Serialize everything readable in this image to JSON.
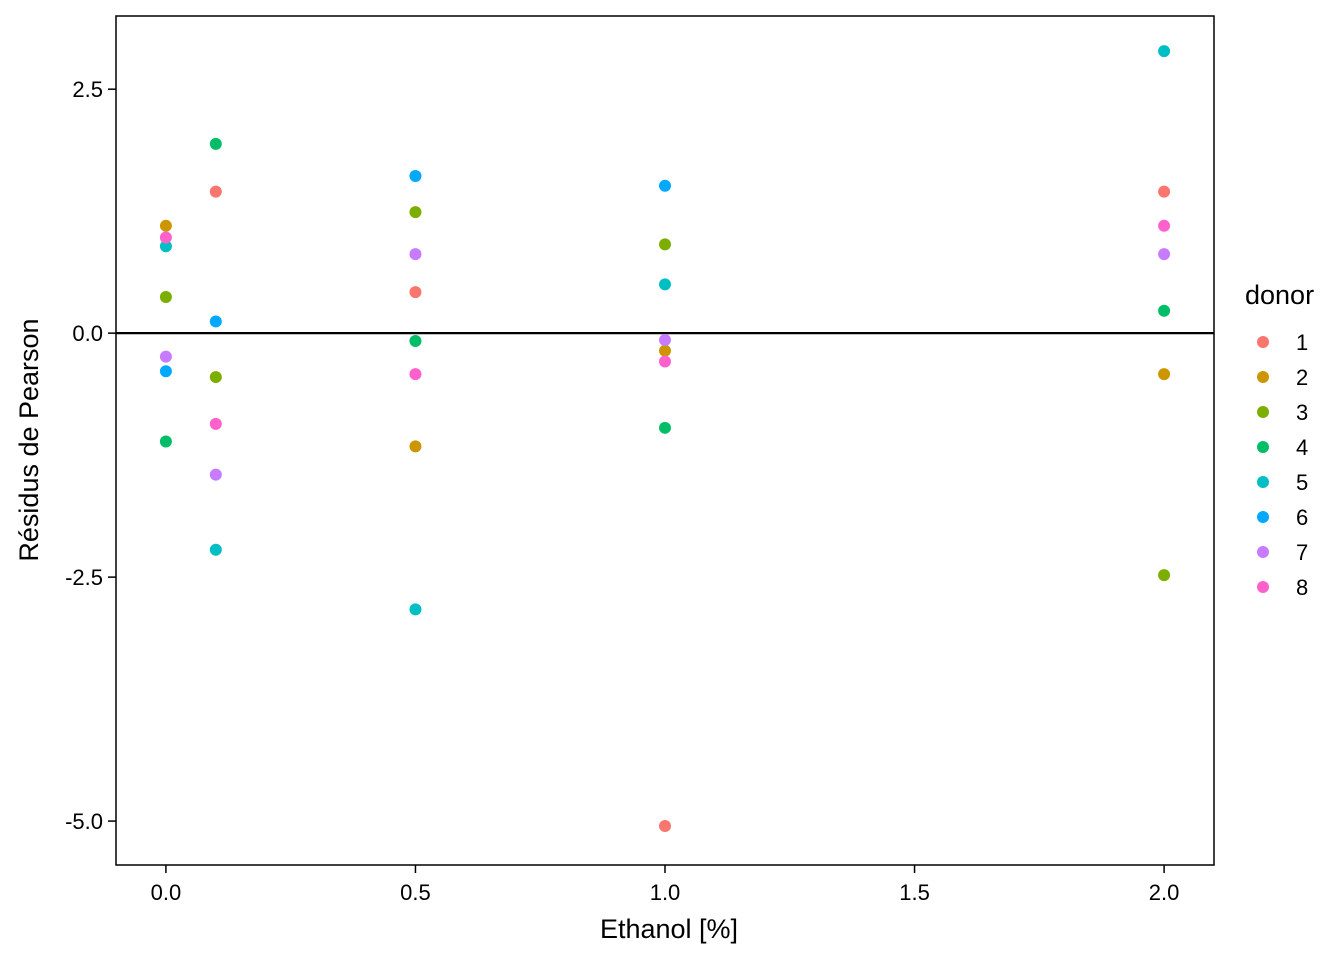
{
  "chart_data": {
    "type": "scatter",
    "xlabel": "Ethanol [%]",
    "ylabel": "Résidus de Pearson",
    "xlim": [
      -0.1,
      2.1
    ],
    "ylim": [
      -5.45,
      3.25
    ],
    "x_ticks": [
      0.0,
      0.5,
      1.0,
      1.5,
      2.0
    ],
    "x_tick_labels": [
      "0.0",
      "0.5",
      "1.0",
      "1.5",
      "2.0"
    ],
    "y_ticks": [
      2.5,
      0.0,
      -2.5,
      -5.0
    ],
    "y_tick_labels": [
      "2.5",
      "0.0",
      "-2.5",
      "-5.0"
    ],
    "reference_line_y": 0,
    "grid": false,
    "legend": {
      "title": "donor",
      "placement": "right",
      "entries": [
        "1",
        "2",
        "3",
        "4",
        "5",
        "6",
        "7",
        "8"
      ]
    },
    "series": [
      {
        "name": "1",
        "color": "#F8766D",
        "points": [
          [
            0.1,
            1.45
          ],
          [
            0.5,
            0.42
          ],
          [
            1.0,
            -5.05
          ],
          [
            2.0,
            1.45
          ]
        ]
      },
      {
        "name": "2",
        "color": "#CD9600",
        "points": [
          [
            0.0,
            1.1
          ],
          [
            0.5,
            -1.16
          ],
          [
            1.0,
            -0.18
          ],
          [
            2.0,
            -0.42
          ]
        ]
      },
      {
        "name": "3",
        "color": "#7CAE00",
        "points": [
          [
            0.0,
            0.37
          ],
          [
            0.1,
            -0.45
          ],
          [
            0.5,
            1.24
          ],
          [
            1.0,
            0.91
          ],
          [
            2.0,
            -2.48
          ]
        ]
      },
      {
        "name": "4",
        "color": "#00BE67",
        "points": [
          [
            0.0,
            -1.11
          ],
          [
            0.1,
            1.94
          ],
          [
            0.5,
            -0.08
          ],
          [
            1.0,
            -0.97
          ],
          [
            2.0,
            0.23
          ]
        ]
      },
      {
        "name": "5",
        "color": "#00BFC4",
        "points": [
          [
            0.0,
            0.89
          ],
          [
            0.1,
            -2.22
          ],
          [
            0.5,
            -2.83
          ],
          [
            1.0,
            0.5
          ],
          [
            2.0,
            2.89
          ]
        ]
      },
      {
        "name": "6",
        "color": "#00A9FF",
        "points": [
          [
            0.0,
            -0.39
          ],
          [
            0.1,
            0.12
          ],
          [
            0.5,
            1.61
          ],
          [
            1.0,
            1.51
          ]
        ]
      },
      {
        "name": "7",
        "color": "#C77CFF",
        "points": [
          [
            0.0,
            -0.24
          ],
          [
            0.1,
            -1.45
          ],
          [
            0.5,
            0.81
          ],
          [
            1.0,
            -0.07
          ],
          [
            2.0,
            0.81
          ]
        ]
      },
      {
        "name": "8",
        "color": "#FF61CC",
        "points": [
          [
            0.0,
            0.98
          ],
          [
            0.1,
            -0.93
          ],
          [
            0.5,
            -0.42
          ],
          [
            1.0,
            -0.29
          ],
          [
            2.0,
            1.1
          ]
        ]
      }
    ]
  }
}
